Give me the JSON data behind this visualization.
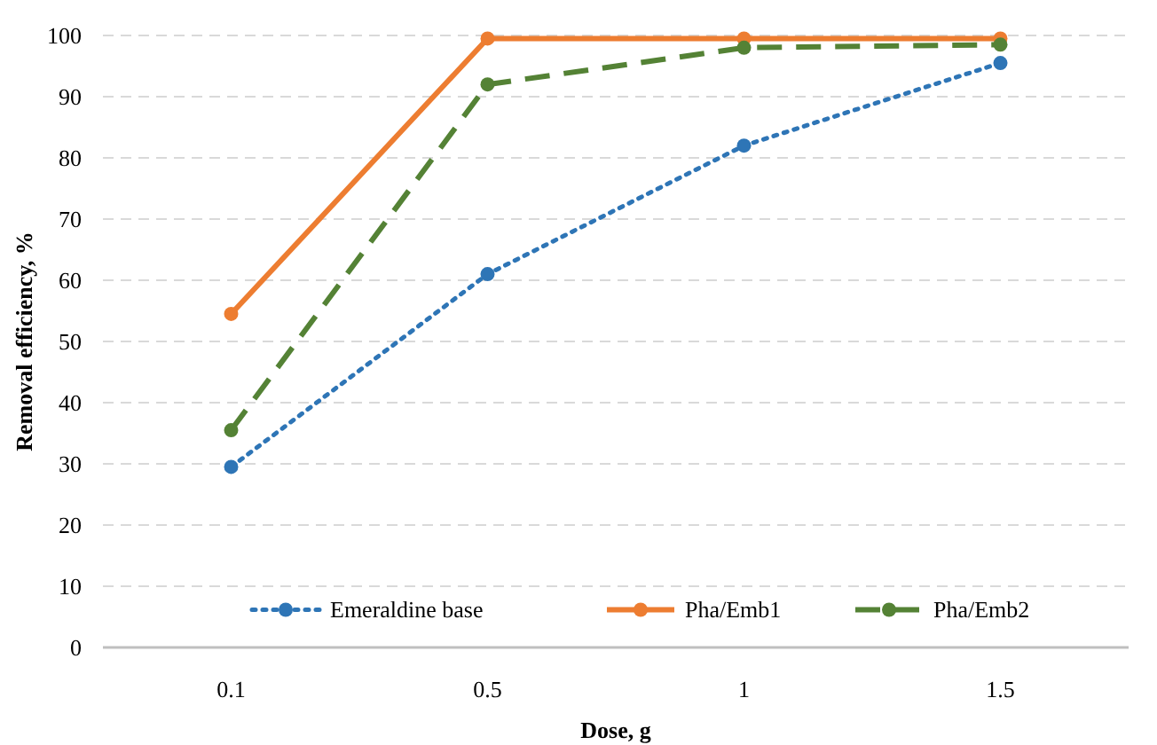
{
  "chart_data": {
    "type": "line",
    "xlabel": "Dose, g",
    "ylabel": "Removal efficiency, %",
    "categories": [
      "0.1",
      "0.5",
      "1",
      "1.5"
    ],
    "series": [
      {
        "name": "Emeraldine base",
        "color": "#2e75b6",
        "values": [
          29.5,
          61,
          82,
          95.5
        ],
        "line_style": "dotted"
      },
      {
        "name": "Pha/Emb1",
        "color": "#ed7d31",
        "values": [
          54.5,
          99.5,
          99.5,
          99.5
        ],
        "line_style": "solid"
      },
      {
        "name": "Pha/Emb2",
        "color": "#548235",
        "values": [
          35.5,
          92,
          98,
          98.5
        ],
        "line_style": "dashed"
      }
    ],
    "ylim": [
      0,
      100
    ],
    "yticks": [
      0,
      10,
      20,
      30,
      40,
      50,
      60,
      70,
      80,
      90,
      100
    ],
    "grid": "y",
    "legend": "bottom",
    "marker": "circle"
  }
}
